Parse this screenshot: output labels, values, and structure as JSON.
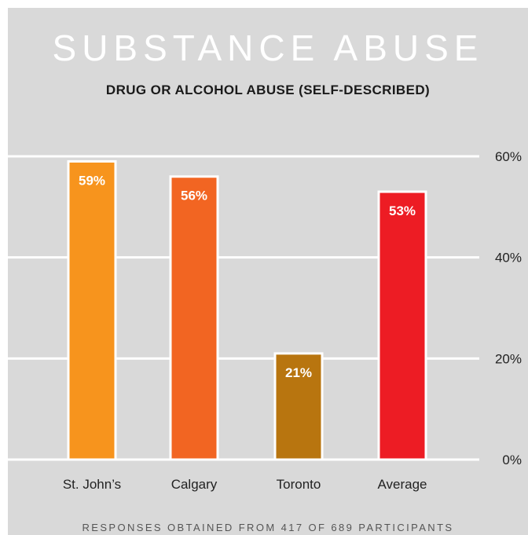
{
  "header": {
    "title": "SUBSTANCE ABUSE",
    "subtitle": "DRUG OR ALCOHOL ABUSE (SELF-DESCRIBED)"
  },
  "footnote": "RESPONSES OBTAINED FROM 417 OF 689 PARTICIPANTS",
  "colors": {
    "background": "#d9d9d9",
    "gridline": "#ffffff",
    "bar_outline": "#ffffff"
  },
  "chart_data": {
    "type": "bar",
    "title": "SUBSTANCE ABUSE",
    "subtitle": "DRUG OR ALCOHOL ABUSE (SELF-DESCRIBED)",
    "categories": [
      "St. John’s",
      "Calgary",
      "Toronto",
      "Average"
    ],
    "values": [
      59,
      56,
      21,
      53
    ],
    "value_labels": [
      "59%",
      "56%",
      "21%",
      "53%"
    ],
    "bar_colors": [
      "#f7941d",
      "#f26522",
      "#b8750f",
      "#ed1c24"
    ],
    "ylim": [
      0,
      60
    ],
    "yticks": [
      0,
      20,
      40,
      60
    ],
    "ytick_labels": [
      "0%",
      "20%",
      "40%",
      "60%"
    ],
    "y_axis_position": "right",
    "grid": true,
    "xlabel": "",
    "ylabel": ""
  }
}
